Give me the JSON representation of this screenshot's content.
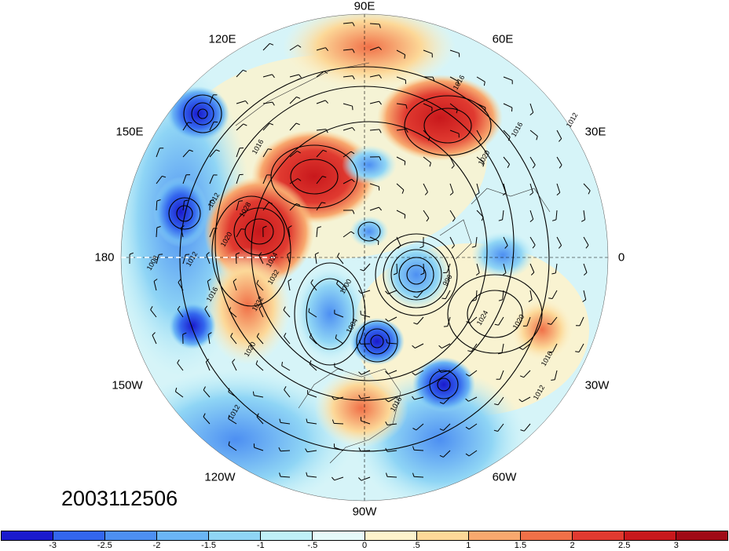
{
  "map": {
    "timestamp": "2003112506",
    "longitude_labels": [
      {
        "id": "90e",
        "text": "90E"
      },
      {
        "id": "60e",
        "text": "60E"
      },
      {
        "id": "30e",
        "text": "30E"
      },
      {
        "id": "0",
        "text": "0"
      },
      {
        "id": "30w",
        "text": "30W"
      },
      {
        "id": "60w",
        "text": "60W"
      },
      {
        "id": "90w",
        "text": "90W"
      },
      {
        "id": "120w",
        "text": "120W"
      },
      {
        "id": "150w",
        "text": "150W"
      },
      {
        "id": "180",
        "text": "180"
      },
      {
        "id": "150e",
        "text": "150E"
      },
      {
        "id": "120e",
        "text": "120E"
      }
    ],
    "contour_labels": [
      "1016",
      "1012",
      "1016",
      "1020",
      "1016",
      "1012",
      "1028",
      "1020",
      "1024",
      "1032",
      "1032",
      "1008",
      "1012",
      "1016",
      "1020",
      "1000",
      "1004",
      "996",
      "1024",
      "1020",
      "1016",
      "1012",
      "1016",
      "1012"
    ]
  },
  "colorbar": {
    "colors": [
      "#1a1acd",
      "#3366ee",
      "#4d8ff2",
      "#6ab5f5",
      "#8fd5f5",
      "#bff0f7",
      "#e6fafa",
      "#fdf3cc",
      "#fcd898",
      "#f8a86e",
      "#f07048",
      "#e03a30",
      "#c8181c",
      "#a00a16"
    ],
    "labels": [
      "-3",
      "-2.5",
      "-2",
      "-1.5",
      "-1",
      "-.5",
      "0",
      ".5",
      "1",
      "1.5",
      "2",
      "2.5",
      "3"
    ]
  }
}
